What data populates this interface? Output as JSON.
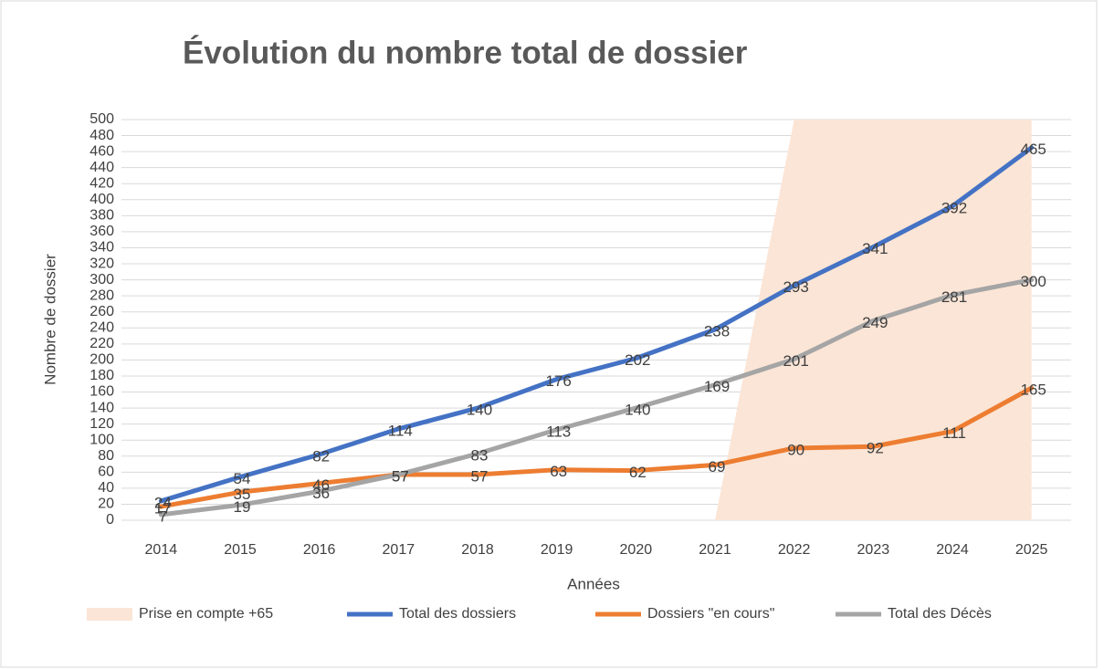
{
  "chart_data": {
    "type": "line",
    "title": "Évolution du nombre total de dossier",
    "x_label": "Années",
    "y_label": "Nombre de dossier",
    "categories": [
      "2014",
      "2015",
      "2016",
      "2017",
      "2018",
      "2019",
      "2020",
      "2021",
      "2022",
      "2023",
      "2024",
      "2025"
    ],
    "series": [
      {
        "name": "Prise en compte +65",
        "type": "area",
        "color": "#fbe5d6",
        "values": [
          null,
          null,
          null,
          null,
          null,
          null,
          null,
          0,
          500,
          500,
          500,
          500
        ]
      },
      {
        "name": "Total des dossiers",
        "type": "line",
        "color": "#4472c4",
        "values": [
          24,
          54,
          82,
          114,
          140,
          176,
          202,
          238,
          293,
          341,
          392,
          465
        ]
      },
      {
        "name": "Dossiers \"en cours\"",
        "type": "line",
        "color": "#ed7d31",
        "values": [
          17,
          35,
          46,
          57,
          57,
          63,
          62,
          69,
          90,
          92,
          111,
          165
        ]
      },
      {
        "name": "Total des Décès",
        "type": "line",
        "color": "#a5a5a5",
        "values": [
          7,
          19,
          36,
          57,
          83,
          113,
          140,
          169,
          201,
          249,
          281,
          300
        ]
      }
    ],
    "ylim": [
      0,
      500
    ],
    "yticks": [
      0,
      20,
      40,
      60,
      80,
      100,
      120,
      140,
      160,
      180,
      200,
      220,
      240,
      260,
      280,
      300,
      320,
      340,
      360,
      380,
      400,
      420,
      440,
      460,
      480,
      500
    ],
    "grid": true,
    "legend": "bottom"
  }
}
